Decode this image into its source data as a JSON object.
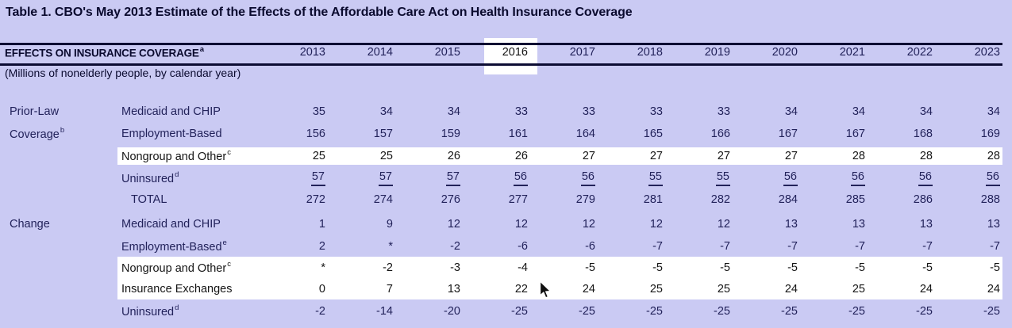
{
  "title": "Table 1. CBO's May 2013 Estimate of the Effects of the Affordable Care Act on Health Insurance Coverage",
  "header": {
    "label": "EFFECTS ON INSURANCE COVERAGE",
    "label_superscript": "a",
    "years": [
      "2013",
      "2014",
      "2015",
      "2016",
      "2017",
      "2018",
      "2019",
      "2020",
      "2021",
      "2022",
      "2023"
    ],
    "highlighted_year": "2016"
  },
  "subtitle": "(Millions of nonelderly people, by calendar year)",
  "colors": {
    "background": "#cacaf3",
    "highlight": "#ffffff",
    "rule": "#0c0c33",
    "text": "#22225a",
    "text_dark": "#0a0a2e",
    "text_on_highlight": "#151515"
  },
  "sections": [
    {
      "group_label_lines": [
        {
          "text": "Prior-Law"
        },
        {
          "text": "Coverage",
          "superscript": "b"
        }
      ],
      "rows": [
        {
          "label": "Medicaid and CHIP",
          "values": [
            "35",
            "34",
            "34",
            "33",
            "33",
            "33",
            "33",
            "34",
            "34",
            "34",
            "34"
          ]
        },
        {
          "label": "Employment-Based",
          "values": [
            "156",
            "157",
            "159",
            "161",
            "164",
            "165",
            "166",
            "167",
            "167",
            "168",
            "169"
          ]
        },
        {
          "label": "Nongroup and Other",
          "superscript": "c",
          "highlight": true,
          "values": [
            "25",
            "25",
            "26",
            "26",
            "27",
            "27",
            "27",
            "27",
            "28",
            "28",
            "28"
          ]
        },
        {
          "label": "Uninsured",
          "superscript": "d",
          "underline": true,
          "values": [
            "57",
            "57",
            "57",
            "56",
            "56",
            "55",
            "55",
            "56",
            "56",
            "56",
            "56"
          ]
        },
        {
          "label": "TOTAL",
          "indent": true,
          "values": [
            "272",
            "274",
            "276",
            "277",
            "279",
            "281",
            "282",
            "284",
            "285",
            "286",
            "288"
          ]
        }
      ]
    },
    {
      "group_label_lines": [
        {
          "text": "Change"
        }
      ],
      "rows": [
        {
          "label": "Medicaid and CHIP",
          "values": [
            "1",
            "9",
            "12",
            "12",
            "12",
            "12",
            "12",
            "13",
            "13",
            "13",
            "13"
          ]
        },
        {
          "label": "Employment-Based",
          "superscript": "e",
          "values": [
            "2",
            "*",
            "-2",
            "-6",
            "-6",
            "-7",
            "-7",
            "-7",
            "-7",
            "-7",
            "-7"
          ]
        },
        {
          "label": "Nongroup and Other",
          "superscript": "c",
          "highlight": true,
          "values": [
            "*",
            "-2",
            "-3",
            "-4",
            "-5",
            "-5",
            "-5",
            "-5",
            "-5",
            "-5",
            "-5"
          ]
        },
        {
          "label": "Insurance Exchanges",
          "highlight": true,
          "values": [
            "0",
            "7",
            "13",
            "22",
            "24",
            "25",
            "25",
            "24",
            "25",
            "24",
            "24"
          ]
        },
        {
          "label": "Uninsured",
          "superscript": "d",
          "values": [
            "-2",
            "-14",
            "-20",
            "-25",
            "-25",
            "-25",
            "-25",
            "-25",
            "-25",
            "-25",
            "-25"
          ]
        }
      ]
    }
  ]
}
